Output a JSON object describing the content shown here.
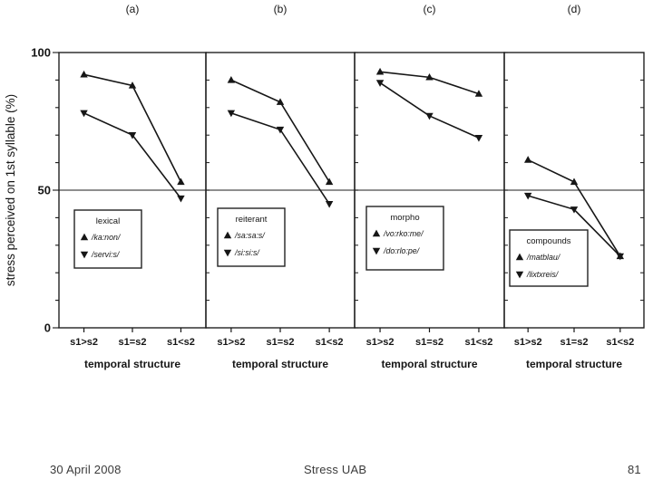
{
  "slide": {
    "footer": {
      "date": "30 April 2008",
      "center": "Stress UAB",
      "page": "81"
    }
  },
  "figure": {
    "ylabel": "stress perceived on 1st syllable (%)",
    "yticks": [
      "0",
      "50",
      "100"
    ],
    "xlabel": "temporal structure",
    "categories": [
      "s1>s2",
      "s1=s2",
      "s1<s2"
    ]
  },
  "chart_data": [
    {
      "type": "line",
      "title": "(a)",
      "categories": [
        "s1>s2",
        "s1=s2",
        "s1<s2"
      ],
      "xlabel": "temporal structure",
      "ylabel": "stress perceived on 1st syllable (%)",
      "ylim": [
        0,
        100
      ],
      "yticks": [
        0,
        50,
        100
      ],
      "reference_line": 50,
      "legend_title": "lexical",
      "legend_position": "lower-left",
      "series": [
        {
          "name": "/ka:non/",
          "marker": "triangle-up",
          "values": [
            92,
            88,
            53
          ]
        },
        {
          "name": "/servi:s/",
          "marker": "triangle-down",
          "values": [
            78,
            70,
            47
          ]
        }
      ]
    },
    {
      "type": "line",
      "title": "(b)",
      "categories": [
        "s1>s2",
        "s1=s2",
        "s1<s2"
      ],
      "xlabel": "temporal structure",
      "ylim": [
        0,
        100
      ],
      "yticks": [
        0,
        50,
        100
      ],
      "reference_line": 50,
      "legend_title": "reiterant",
      "legend_position": "lower-left",
      "series": [
        {
          "name": "/sa:sa:s/",
          "marker": "triangle-up",
          "values": [
            90,
            82,
            53
          ]
        },
        {
          "name": "/si:si:s/",
          "marker": "triangle-down",
          "values": [
            78,
            72,
            45
          ]
        }
      ]
    },
    {
      "type": "line",
      "title": "(c)",
      "categories": [
        "s1>s2",
        "s1=s2",
        "s1<s2"
      ],
      "xlabel": "temporal structure",
      "ylim": [
        0,
        100
      ],
      "yticks": [
        0,
        50,
        100
      ],
      "reference_line": 50,
      "legend_title": "morpho",
      "legend_position": "lower-left",
      "series": [
        {
          "name": "/vo:rko:me/",
          "marker": "triangle-up",
          "values": [
            93,
            91,
            85
          ]
        },
        {
          "name": "/do:rlo:pe/",
          "marker": "triangle-down",
          "values": [
            89,
            77,
            69
          ]
        }
      ]
    },
    {
      "type": "line",
      "title": "(d)",
      "categories": [
        "s1>s2",
        "s1=s2",
        "s1<s2"
      ],
      "xlabel": "temporal structure",
      "ylim": [
        0,
        100
      ],
      "yticks": [
        0,
        50,
        100
      ],
      "reference_line": 50,
      "legend_title": "compounds",
      "legend_position": "lower-left",
      "series": [
        {
          "name": "/matblau/",
          "marker": "triangle-up",
          "values": [
            61,
            53,
            26
          ]
        },
        {
          "name": "/lixtxreis/",
          "marker": "triangle-down",
          "values": [
            48,
            43,
            26
          ]
        }
      ]
    }
  ],
  "colors": {
    "ink": "#161616",
    "reference": "#4a4a4a",
    "footer": "#3a3a3a"
  }
}
